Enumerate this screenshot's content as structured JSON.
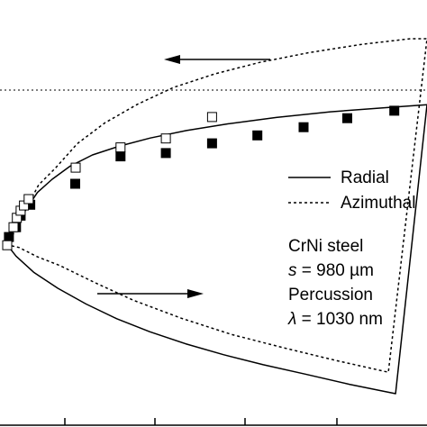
{
  "chart_data": {
    "type": "scatter",
    "title": "",
    "xlabel": "",
    "ylabel": "",
    "grid": false,
    "legend_placement": "right",
    "legend": [
      {
        "label": "Radial",
        "style": "solid"
      },
      {
        "label": "Azimuthal",
        "style": "dotted"
      }
    ],
    "annotation_lines": [
      "CrNi steel",
      "s = 980 µm",
      "Percussion",
      "λ = 1030 nm"
    ],
    "annotation": {
      "material": "CrNi steel",
      "thickness_symbol": "s",
      "thickness_value": "= 980 µm",
      "mode": "Percussion",
      "wavelength_symbol": "λ",
      "wavelength_value": "= 1030 nm"
    },
    "arrows": [
      {
        "direction": "left",
        "position": "upper"
      },
      {
        "direction": "right",
        "position": "lower"
      }
    ],
    "reference_line": {
      "style": "dotted",
      "orientation": "horizontal"
    },
    "note": "Axis tick labels are cropped out of the image; values below are in relative data units (x: 0–1 across visible axis, y: 0–1 from bottom to top of visible area).",
    "series": [
      {
        "name": "Radial",
        "kind": "line",
        "style": "solid",
        "color": "#000000",
        "x": [
          0.0,
          0.021,
          0.045,
          0.072,
          0.107,
          0.15,
          0.203,
          0.266,
          0.341,
          0.427,
          0.527,
          0.641,
          0.77,
          0.913,
          1.0,
          0.925,
          0.815,
          0.71,
          0.61,
          0.515,
          0.425,
          0.34,
          0.261,
          0.188,
          0.121,
          0.063,
          0.021,
          0.0
        ],
        "y": [
          0.45,
          0.5,
          0.545,
          0.59,
          0.625,
          0.66,
          0.69,
          0.713,
          0.735,
          0.755,
          0.773,
          0.79,
          0.805,
          0.817,
          0.824,
          0.053,
          0.078,
          0.105,
          0.13,
          0.157,
          0.186,
          0.218,
          0.253,
          0.292,
          0.334,
          0.377,
          0.42,
          0.45
        ]
      },
      {
        "name": "Azimuthal",
        "kind": "line",
        "style": "dotted",
        "color": "#000000",
        "x": [
          0.0,
          0.025,
          0.047,
          0.075,
          0.115,
          0.167,
          0.232,
          0.31,
          0.396,
          0.494,
          0.602,
          0.719,
          0.845,
          0.96,
          1.0,
          0.908,
          0.781,
          0.656,
          0.534,
          0.415,
          0.301,
          0.211,
          0.125,
          0.072,
          0.028,
          0.0
        ],
        "y": [
          0.45,
          0.5,
          0.55,
          0.61,
          0.655,
          0.72,
          0.775,
          0.825,
          0.87,
          0.906,
          0.937,
          0.963,
          0.985,
          1.0,
          1.0,
          0.11,
          0.142,
          0.176,
          0.211,
          0.254,
          0.302,
          0.348,
          0.395,
          0.418,
          0.443,
          0.45
        ]
      },
      {
        "name": "",
        "kind": "markers",
        "marker": "filled-square",
        "x": [
          0.004,
          0.021,
          0.032,
          0.055,
          0.162,
          0.27,
          0.378,
          0.488,
          0.596,
          0.706,
          0.81,
          0.922
        ],
        "y": [
          0.471,
          0.497,
          0.528,
          0.557,
          0.613,
          0.686,
          0.695,
          0.721,
          0.742,
          0.764,
          0.788,
          0.808
        ]
      },
      {
        "name": "",
        "kind": "markers",
        "marker": "open-square",
        "x": [
          0.0,
          0.015,
          0.023,
          0.032,
          0.04,
          0.051,
          0.163,
          0.27,
          0.378,
          0.488
        ],
        "y": [
          0.449,
          0.497,
          0.522,
          0.541,
          0.555,
          0.572,
          0.656,
          0.71,
          0.734,
          0.791
        ]
      }
    ]
  }
}
